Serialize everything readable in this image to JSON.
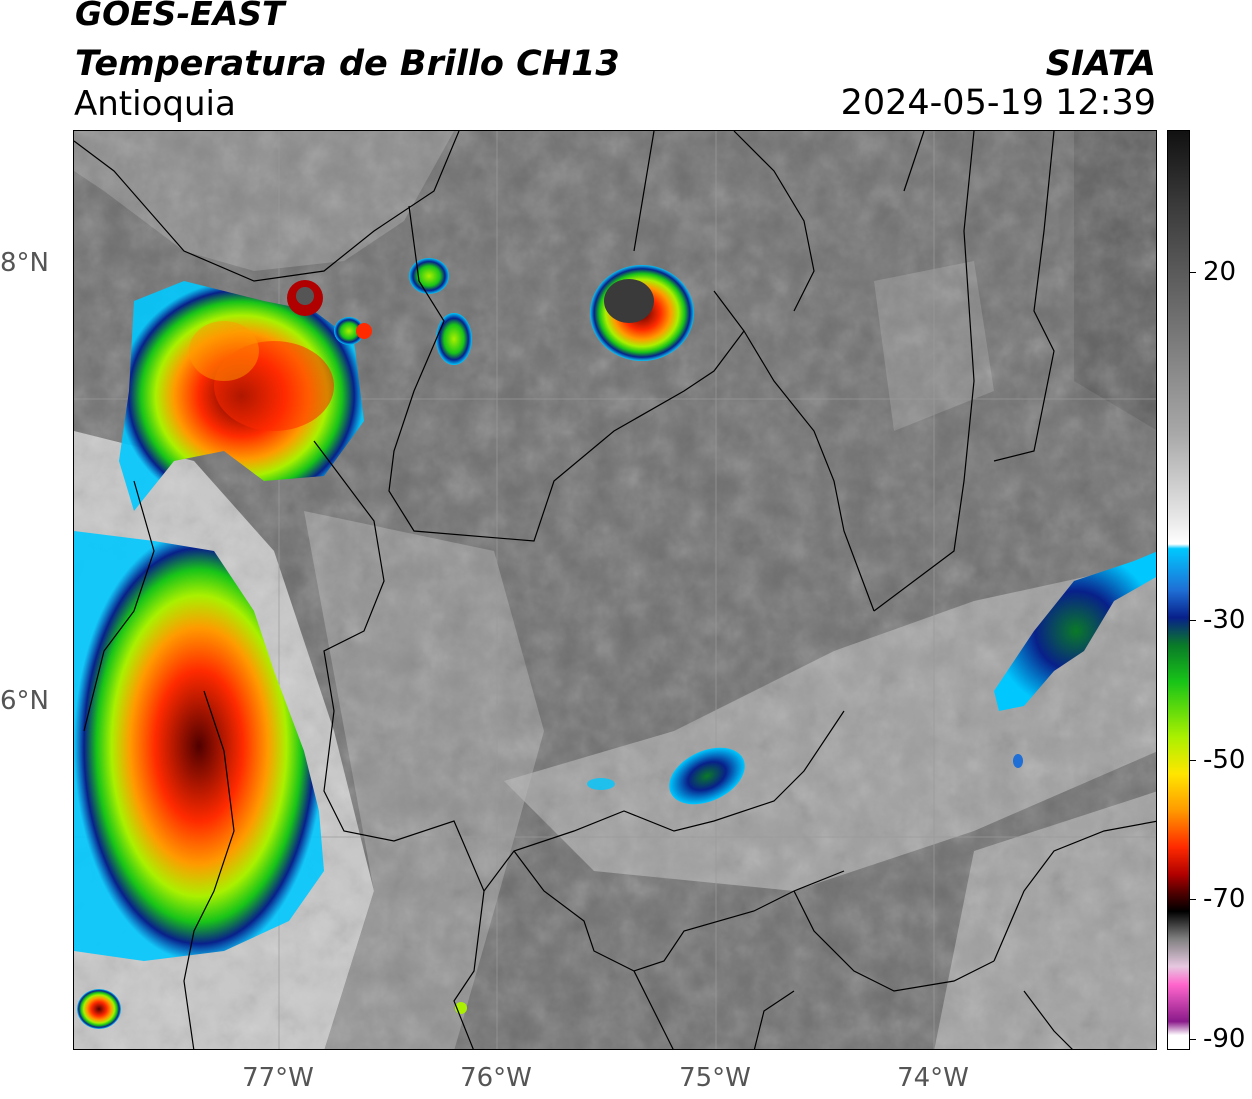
{
  "header": {
    "satellite": "GOES-EAST",
    "product": "Temperatura de Brillo CH13",
    "organization": "SIATA",
    "region": "Antioquia",
    "timestamp": "2024-05-19 12:39"
  },
  "map": {
    "lat_ticks": [
      "8°N",
      "6°N"
    ],
    "lon_ticks": [
      "77°W",
      "76°W",
      "75°W",
      "74°W"
    ]
  },
  "colorbar": {
    "labels": [
      "20",
      "-30",
      "-50",
      "-70",
      "-90"
    ],
    "stops": [
      {
        "color": "#111111"
      },
      {
        "color": "#3a3a3a"
      },
      {
        "color": "#6e6e6e"
      },
      {
        "color": "#a8a8a8"
      },
      {
        "color": "#e6e6e6"
      },
      {
        "color": "#ffffff"
      },
      {
        "color": "#00c8ff"
      },
      {
        "color": "#1f6fd6"
      },
      {
        "color": "#08208a"
      },
      {
        "color": "#0a7a28"
      },
      {
        "color": "#18c418"
      },
      {
        "color": "#aaf000"
      },
      {
        "color": "#ffe600"
      },
      {
        "color": "#ff9a00"
      },
      {
        "color": "#ff2a00"
      },
      {
        "color": "#b00000"
      },
      {
        "color": "#500000"
      },
      {
        "color": "#000000"
      },
      {
        "color": "#808080"
      },
      {
        "color": "#e6c8e0"
      },
      {
        "color": "#ff66cc"
      },
      {
        "color": "#8a1a8a"
      }
    ]
  }
}
